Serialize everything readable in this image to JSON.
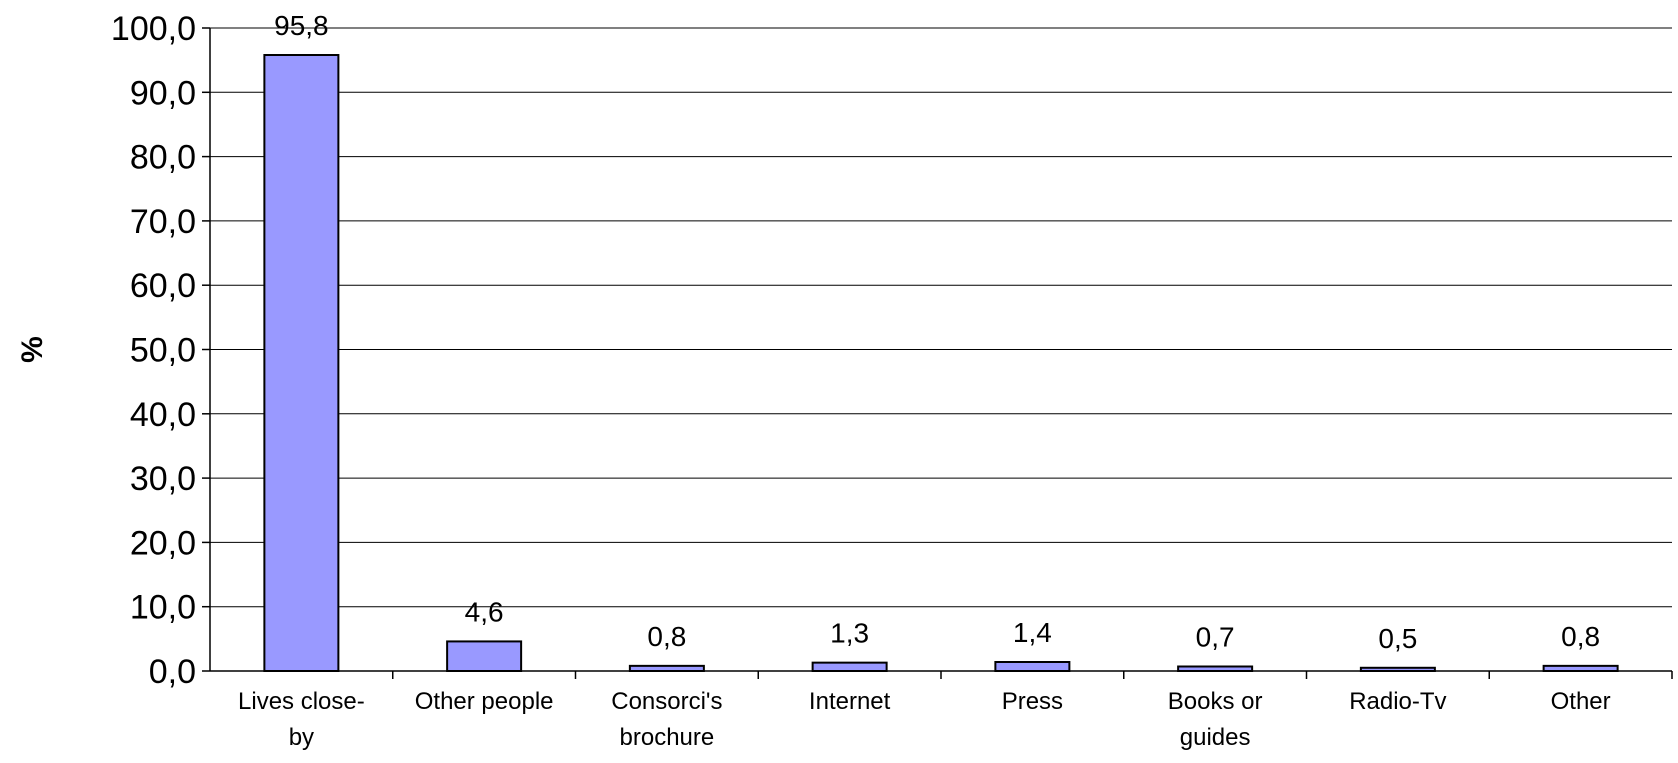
{
  "chart_data": {
    "type": "bar",
    "title": "",
    "xlabel": "",
    "ylabel": "%",
    "ylim": [
      0,
      100
    ],
    "y_ticks": [
      "0,0",
      "10,0",
      "20,0",
      "30,0",
      "40,0",
      "50,0",
      "60,0",
      "70,0",
      "80,0",
      "90,0",
      "100,0"
    ],
    "grid": true,
    "legend": "none",
    "bar_color": "#9999ff",
    "categories": [
      [
        "Lives close-",
        "by"
      ],
      [
        "Other people"
      ],
      [
        "Consorci's",
        "brochure"
      ],
      [
        "Internet"
      ],
      [
        "Press"
      ],
      [
        "Books or",
        "guides"
      ],
      [
        "Radio-Tv"
      ],
      [
        "Other"
      ]
    ],
    "values": [
      95.8,
      4.6,
      0.8,
      1.3,
      1.4,
      0.7,
      0.5,
      0.8
    ],
    "value_labels": [
      "95,8",
      "4,6",
      "0,8",
      "1,3",
      "1,4",
      "0,7",
      "0,5",
      "0,8"
    ]
  }
}
